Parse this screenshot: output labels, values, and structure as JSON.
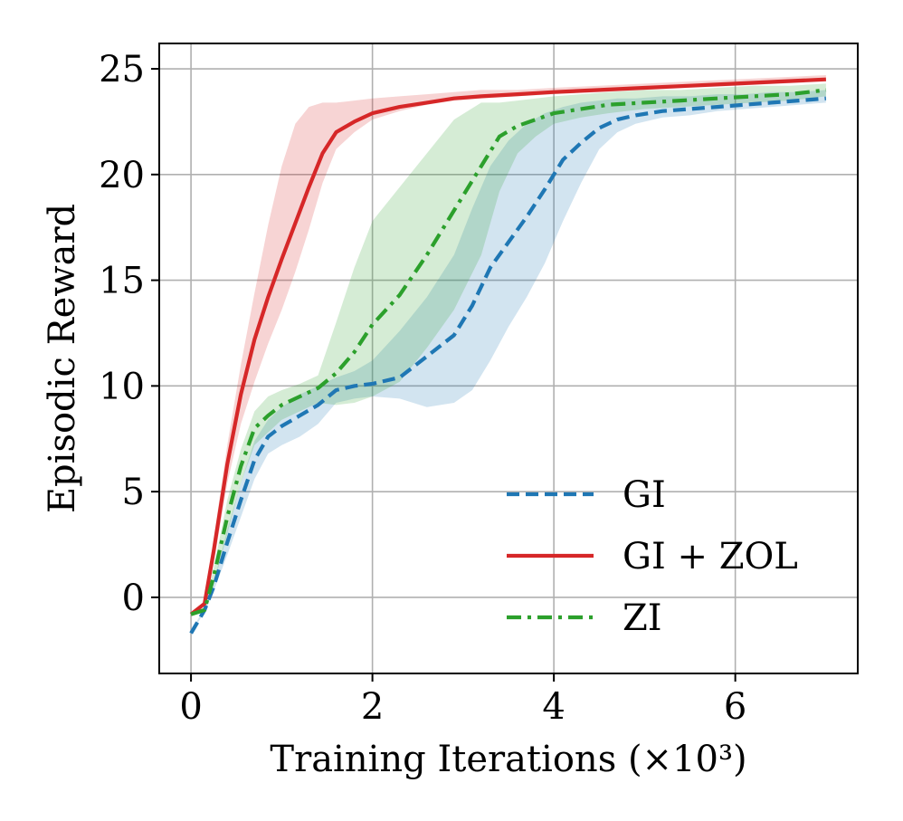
{
  "chart_data": {
    "type": "line",
    "title": "",
    "xlabel": "Training Iterations (×10³)",
    "ylabel": "Episodic Reward",
    "xlim": [
      -0.35,
      7.35
    ],
    "ylim": [
      -3.6,
      26.2
    ],
    "xticks": [
      0,
      2,
      4,
      6
    ],
    "yticks": [
      0,
      5,
      10,
      15,
      20,
      25
    ],
    "xtick_labels": [
      "0",
      "2",
      "4",
      "6"
    ],
    "ytick_labels": [
      "0",
      "5",
      "10",
      "15",
      "20",
      "25"
    ],
    "grid": true,
    "legend_position": "lower-right",
    "series": [
      {
        "name": "GI",
        "color": "#1f77b4",
        "linestyle": "dashed",
        "x": [
          0,
          0.15,
          0.25,
          0.4,
          0.55,
          0.7,
          0.85,
          1.0,
          1.2,
          1.4,
          1.6,
          1.8,
          2.0,
          2.3,
          2.6,
          2.9,
          3.1,
          3.3,
          3.5,
          3.7,
          3.9,
          4.1,
          4.3,
          4.5,
          4.7,
          4.9,
          5.2,
          5.5,
          5.8,
          6.1,
          6.4,
          6.7,
          7.0
        ],
        "y": [
          -1.7,
          -0.6,
          0.5,
          2.6,
          4.6,
          6.5,
          7.6,
          8.1,
          8.6,
          9.1,
          9.8,
          10.0,
          10.1,
          10.4,
          11.4,
          12.4,
          13.8,
          15.6,
          16.8,
          18.0,
          19.3,
          20.7,
          21.5,
          22.2,
          22.6,
          22.8,
          23.0,
          23.1,
          23.2,
          23.3,
          23.4,
          23.5,
          23.6
        ],
        "lower": [
          -1.7,
          -0.7,
          0.3,
          2.0,
          3.8,
          5.6,
          6.8,
          7.2,
          7.6,
          8.2,
          9.2,
          9.4,
          9.5,
          9.4,
          9.0,
          9.2,
          9.8,
          11.2,
          12.8,
          14.2,
          15.8,
          17.8,
          19.6,
          21.2,
          22.0,
          22.4,
          22.7,
          22.8,
          23.0,
          23.1,
          23.2,
          23.3,
          23.4
        ],
        "upper": [
          -1.6,
          -0.5,
          0.7,
          3.2,
          5.4,
          7.4,
          8.4,
          9.0,
          9.6,
          10.0,
          10.4,
          10.7,
          11.2,
          12.6,
          14.2,
          16.2,
          18.4,
          20.4,
          21.6,
          22.4,
          22.9,
          23.2,
          23.4,
          23.5,
          23.6,
          23.6,
          23.7,
          23.7,
          23.8,
          23.8,
          23.9,
          23.9,
          24.0
        ]
      },
      {
        "name": "GI + ZOL",
        "color": "#d62728",
        "linestyle": "solid",
        "x": [
          0,
          0.15,
          0.25,
          0.4,
          0.55,
          0.7,
          0.85,
          1.0,
          1.15,
          1.3,
          1.45,
          1.6,
          1.8,
          2.0,
          2.3,
          2.6,
          2.9,
          3.2,
          3.6,
          4.0,
          4.5,
          5.0,
          5.5,
          6.0,
          6.5,
          7.0
        ],
        "y": [
          -0.8,
          -0.3,
          2.2,
          6.3,
          9.6,
          12.2,
          14.2,
          16.0,
          17.7,
          19.4,
          21.0,
          22.0,
          22.5,
          22.9,
          23.2,
          23.4,
          23.6,
          23.7,
          23.8,
          23.9,
          24.0,
          24.1,
          24.2,
          24.3,
          24.4,
          24.5
        ],
        "lower": [
          -0.9,
          -0.4,
          1.6,
          5.4,
          8.2,
          10.2,
          12.0,
          13.6,
          15.4,
          17.4,
          19.6,
          21.2,
          22.0,
          22.6,
          23.0,
          23.3,
          23.5,
          23.6,
          23.7,
          23.8,
          23.9,
          24.0,
          24.1,
          24.2,
          24.3,
          24.4
        ],
        "upper": [
          -0.7,
          -0.2,
          2.8,
          7.2,
          11.0,
          14.4,
          17.6,
          20.4,
          22.4,
          23.2,
          23.4,
          23.4,
          23.5,
          23.6,
          23.7,
          23.8,
          23.9,
          24.0,
          24.0,
          24.1,
          24.2,
          24.3,
          24.4,
          24.5,
          24.6,
          24.7
        ]
      },
      {
        "name": "ZI",
        "color": "#2ca02c",
        "linestyle": "dashdot",
        "x": [
          0,
          0.15,
          0.25,
          0.4,
          0.55,
          0.7,
          0.85,
          1.0,
          1.2,
          1.4,
          1.6,
          1.8,
          2.0,
          2.3,
          2.6,
          2.9,
          3.2,
          3.4,
          3.6,
          3.8,
          4.0,
          4.3,
          4.6,
          5.0,
          5.4,
          5.8,
          6.2,
          6.6,
          7.0
        ],
        "y": [
          -0.8,
          -0.6,
          1.0,
          3.8,
          6.2,
          8.0,
          8.6,
          9.1,
          9.5,
          9.9,
          10.6,
          11.6,
          12.9,
          14.3,
          16.2,
          18.3,
          20.4,
          21.8,
          22.3,
          22.6,
          22.9,
          23.1,
          23.3,
          23.4,
          23.5,
          23.6,
          23.7,
          23.8,
          24.0
        ],
        "lower": [
          -0.9,
          -0.7,
          0.6,
          3.0,
          5.4,
          7.2,
          7.8,
          8.4,
          8.8,
          9.2,
          9.1,
          9.2,
          9.5,
          10.2,
          11.8,
          13.6,
          16.2,
          19.2,
          21.0,
          21.8,
          22.4,
          22.7,
          22.9,
          23.1,
          23.2,
          23.3,
          23.4,
          23.5,
          23.7
        ],
        "upper": [
          -0.7,
          -0.5,
          1.4,
          4.6,
          7.0,
          8.8,
          9.5,
          9.8,
          10.1,
          10.5,
          13.0,
          15.6,
          17.8,
          19.4,
          21.0,
          22.6,
          23.4,
          23.4,
          23.5,
          23.6,
          23.7,
          23.8,
          23.9,
          24.0,
          24.0,
          24.1,
          24.2,
          24.2,
          24.3
        ]
      }
    ]
  }
}
